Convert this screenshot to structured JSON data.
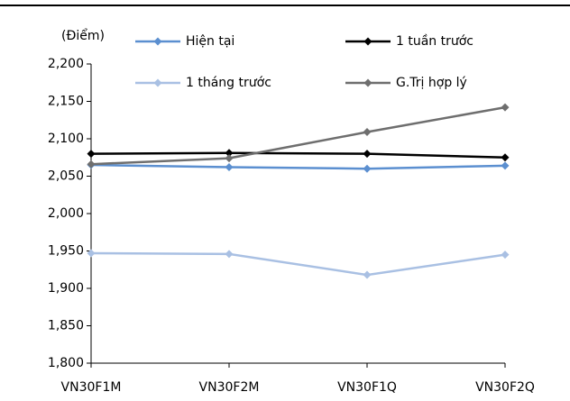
{
  "chart_data": {
    "type": "line",
    "ylabel": "(Điểm)",
    "categories": [
      "VN30F1M",
      "VN30F2M",
      "VN30F1Q",
      "VN30F2Q"
    ],
    "series": [
      {
        "name": "Hiện tại",
        "color": "#5b8fd0",
        "values": [
          2065,
          2062,
          2060,
          2064
        ]
      },
      {
        "name": "1 tuần trước",
        "color": "#000000",
        "values": [
          2080,
          2081,
          2080,
          2075
        ]
      },
      {
        "name": "1 tháng trước",
        "color": "#a9c0e3",
        "values": [
          1947,
          1946,
          1918,
          1945
        ]
      },
      {
        "name": "G.Trị hợp lý",
        "color": "#6e6e6e",
        "values": [
          2066,
          2074,
          2109,
          2142
        ]
      }
    ],
    "ylim": [
      1800,
      2200
    ],
    "yticks": [
      {
        "value": 1800,
        "label": "1,800"
      },
      {
        "value": 1850,
        "label": "1,850"
      },
      {
        "value": 1900,
        "label": "1,900"
      },
      {
        "value": 1950,
        "label": "1,950"
      },
      {
        "value": 2000,
        "label": "2,000"
      },
      {
        "value": 2050,
        "label": "2,050"
      },
      {
        "value": 2100,
        "label": "2,100"
      },
      {
        "value": 2150,
        "label": "2,150"
      },
      {
        "value": 2200,
        "label": "2,200"
      }
    ],
    "grid": false
  }
}
